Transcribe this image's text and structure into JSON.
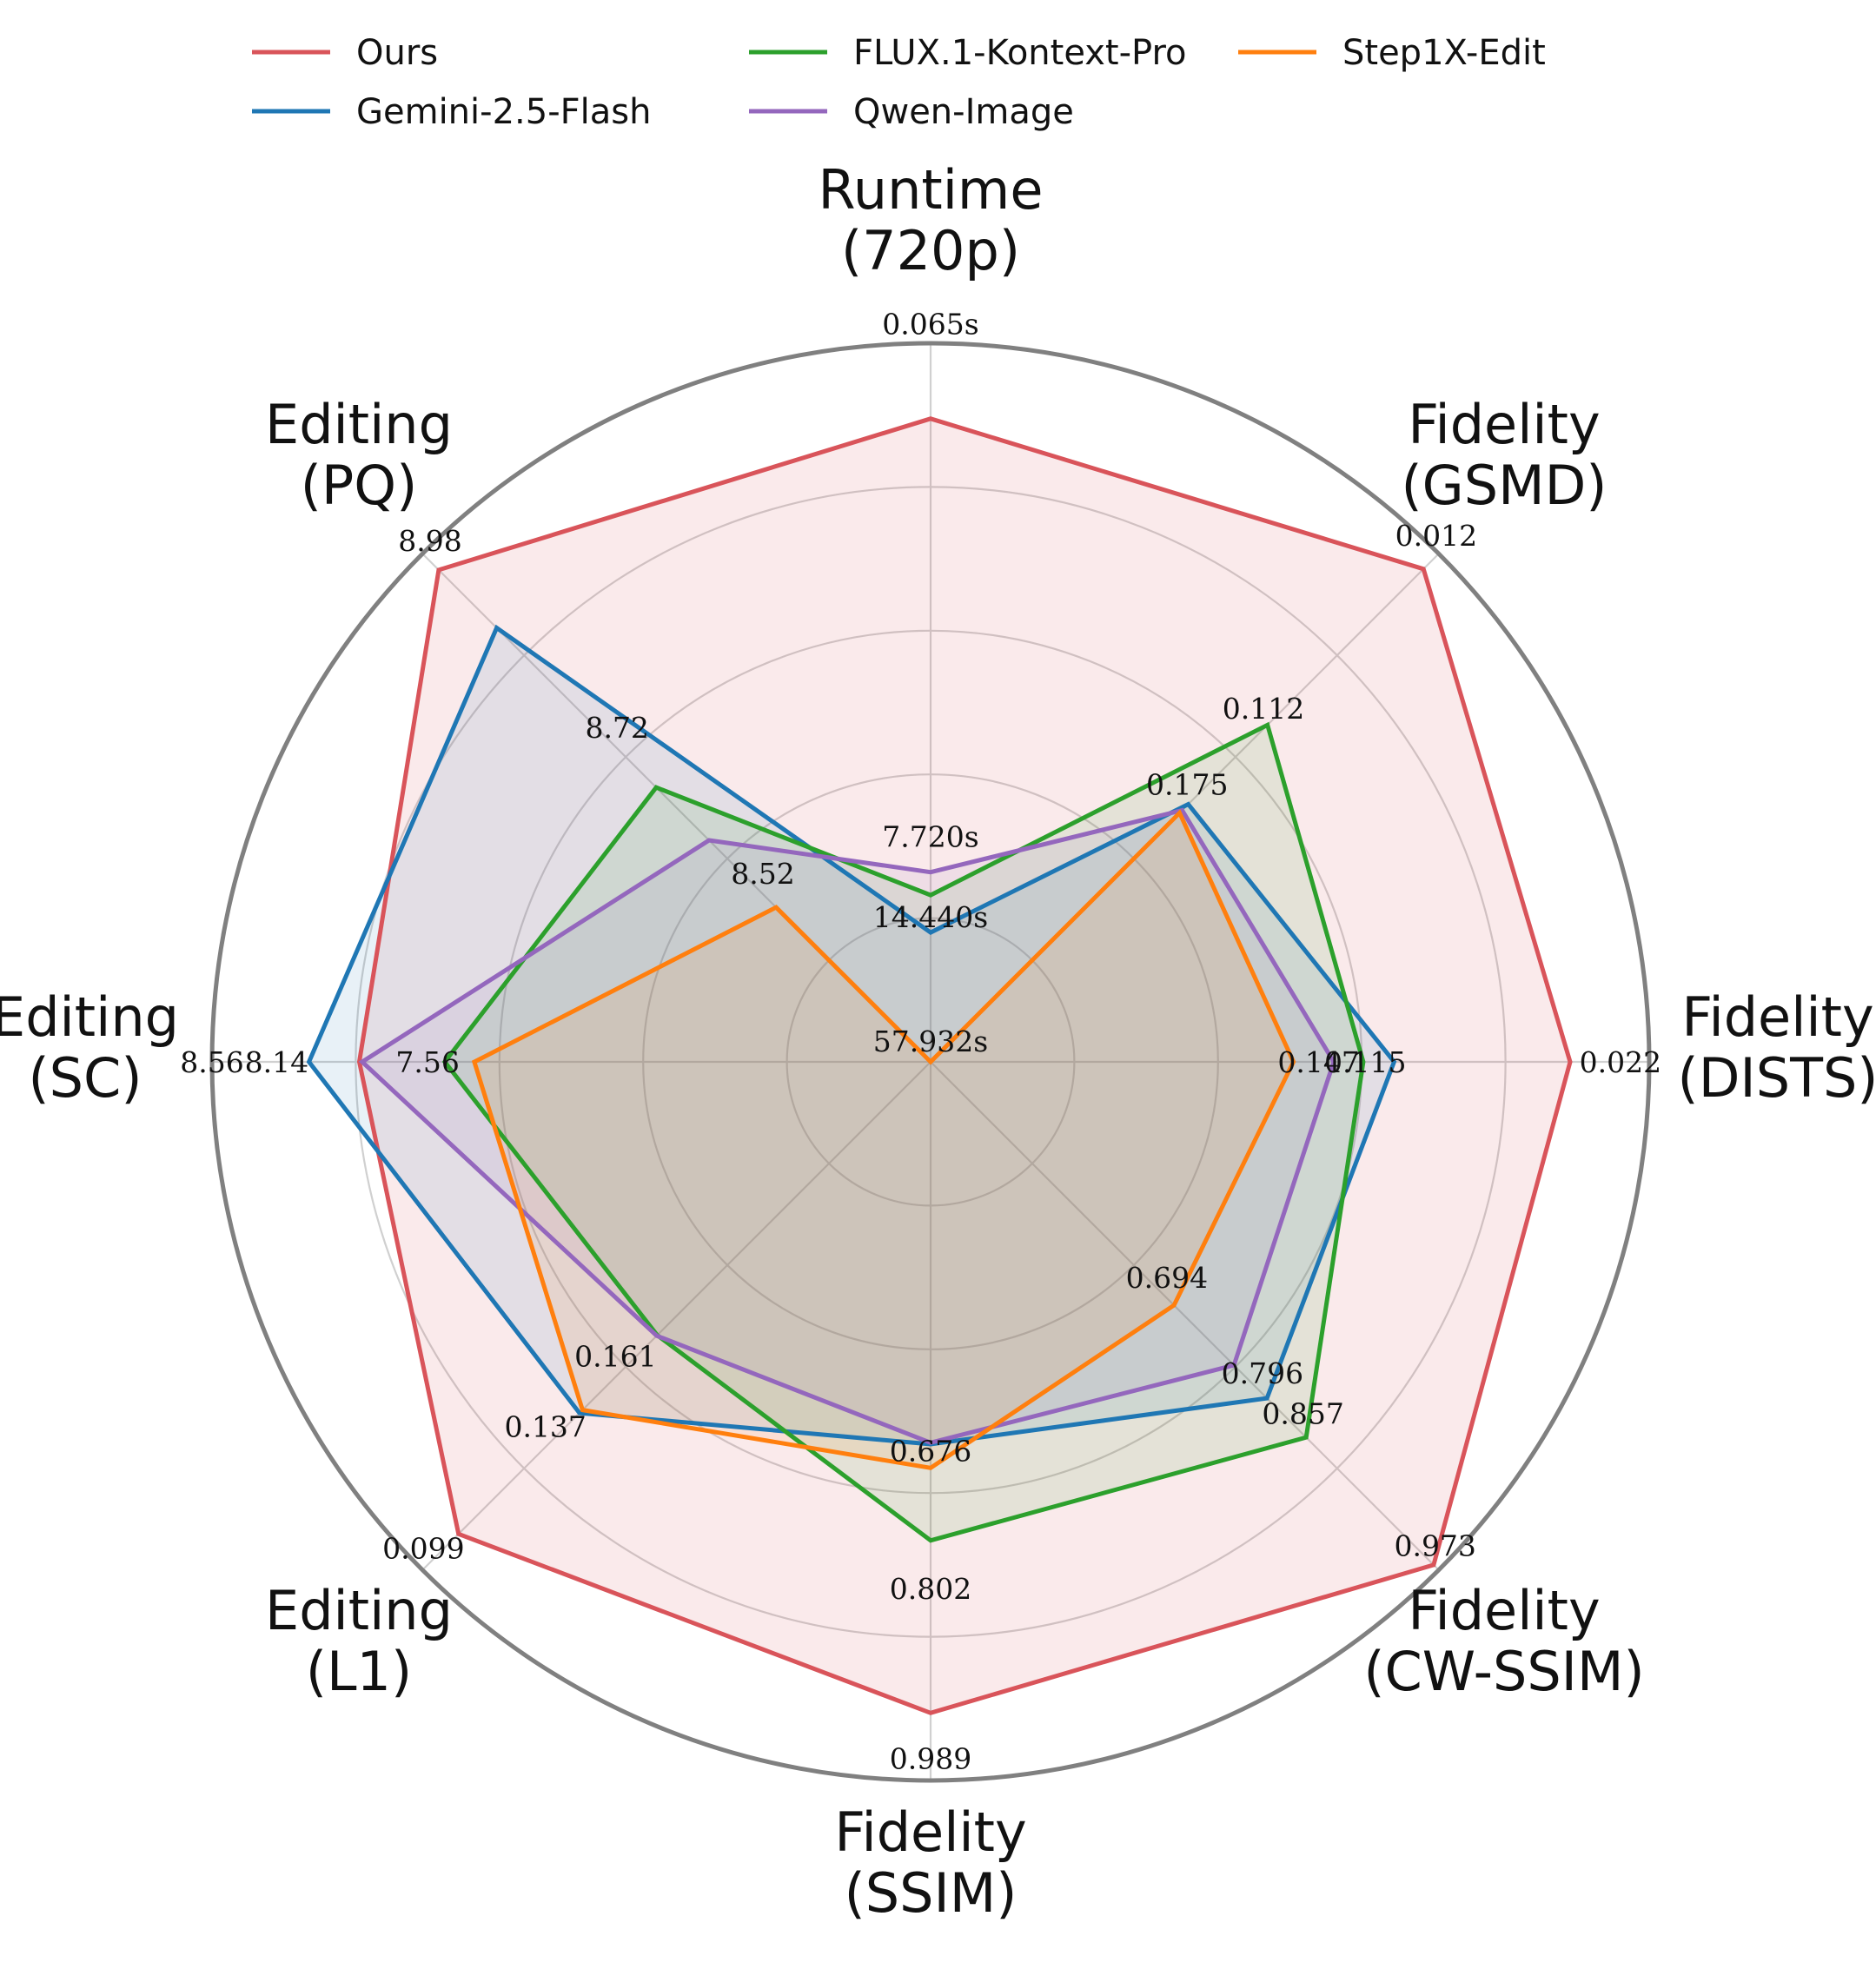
{
  "chart_data": {
    "type": "radar",
    "legend_position": "top",
    "legend": [
      {
        "name": "Ours",
        "color": "#d9545a"
      },
      {
        "name": "FLUX.1-Kontext-Pro",
        "color": "#2ca02c"
      },
      {
        "name": "Step1X-Edit",
        "color": "#ff7f0e"
      },
      {
        "name": "Gemini-2.5-Flash",
        "color": "#1f77b4"
      },
      {
        "name": "Qwen-Image",
        "color": "#9467bd"
      }
    ],
    "axes": [
      {
        "title": [
          "Runtime",
          "(720p)"
        ],
        "ticks": [
          {
            "r": 0.998,
            "label": "0.065s"
          },
          {
            "r": 0.285,
            "label": "7.720s"
          },
          {
            "r": 0.173,
            "label": "14.440s"
          },
          {
            "r": 0.0,
            "label": "57.932s"
          }
        ]
      },
      {
        "title": [
          "Fidelity",
          "(GSMD)"
        ],
        "ticks": [
          {
            "r": 0.995,
            "label": "0.012"
          },
          {
            "r": 0.655,
            "label": "0.112"
          },
          {
            "r": 0.505,
            "label": "0.175"
          }
        ]
      },
      {
        "title": [
          "Fidelity",
          "(DISTS)"
        ],
        "ticks": [
          {
            "r": 0.96,
            "label": "0.022"
          },
          {
            "r": 0.605,
            "label": "0.115"
          },
          {
            "r": 0.54,
            "label": "0.147"
          }
        ]
      },
      {
        "title": [
          "Fidelity",
          "(CW-SSIM)"
        ],
        "ticks": [
          {
            "r": 0.993,
            "label": "0.973"
          },
          {
            "r": 0.733,
            "label": "0.857"
          },
          {
            "r": 0.653,
            "label": "0.796"
          },
          {
            "r": 0.465,
            "label": "0.694"
          }
        ]
      },
      {
        "title": [
          "Fidelity",
          "(SSIM)"
        ],
        "ticks": [
          {
            "r": 0.998,
            "label": "0.989"
          },
          {
            "r": 0.762,
            "label": "0.802"
          },
          {
            "r": 0.57,
            "label": "0.676"
          }
        ]
      },
      {
        "title": [
          "Editing",
          "(L1)"
        ],
        "ticks": [
          {
            "r": 0.998,
            "label": "0.099"
          },
          {
            "r": 0.758,
            "label": "0.137"
          },
          {
            "r": 0.62,
            "label": "0.161"
          }
        ]
      },
      {
        "title": [
          "Editing",
          "(SC)"
        ],
        "ticks": [
          {
            "r": 1.0,
            "label": "8.56"
          },
          {
            "r": 0.91,
            "label": "8.14"
          },
          {
            "r": 0.7,
            "label": "7.56"
          }
        ]
      },
      {
        "title": [
          "Editing",
          "(PQ)"
        ],
        "ticks": [
          {
            "r": 0.985,
            "label": "8.98"
          },
          {
            "r": 0.617,
            "label": "8.72"
          },
          {
            "r": 0.33,
            "label": "8.52"
          }
        ]
      }
    ],
    "series": [
      {
        "name": "Ours",
        "color": "#d9545a",
        "values": [
          0.895,
          0.97,
          0.89,
          0.99,
          0.906,
          0.929,
          0.795,
          0.968
        ]
      },
      {
        "name": "Gemini-2.5-Flash",
        "color": "#1f77b4",
        "values": [
          0.18,
          0.507,
          0.645,
          0.662,
          0.532,
          0.691,
          0.865,
          0.854
        ]
      },
      {
        "name": "FLUX.1-Kontext-Pro",
        "color": "#2ca02c",
        "values": [
          0.232,
          0.663,
          0.602,
          0.739,
          0.666,
          0.538,
          0.676,
          0.54
        ]
      },
      {
        "name": "Qwen-Image",
        "color": "#9467bd",
        "values": [
          0.264,
          0.495,
          0.561,
          0.597,
          0.53,
          0.539,
          0.791,
          0.436
        ]
      },
      {
        "name": "Step1X-Edit",
        "color": "#ff7f0e",
        "values": [
          0.0,
          0.49,
          0.505,
          0.479,
          0.565,
          0.685,
          0.635,
          0.304
        ]
      }
    ],
    "grid": true,
    "rlim": [
      0,
      1
    ]
  }
}
